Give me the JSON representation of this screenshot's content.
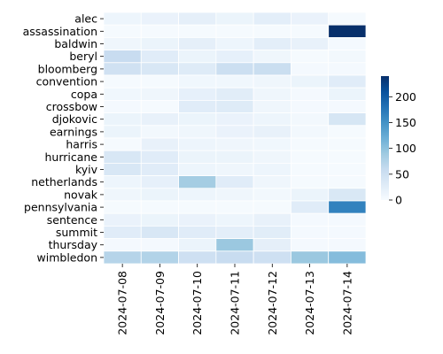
{
  "chart_data": {
    "type": "heatmap",
    "title": "",
    "xlabel": "",
    "ylabel": "",
    "rows": [
      "alec",
      "assassination",
      "baldwin",
      "beryl",
      "bloomberg",
      "convention",
      "copa",
      "crossbow",
      "djokovic",
      "earnings",
      "harris",
      "hurricane",
      "kyiv",
      "netherlands",
      "novak",
      "pennsylvania",
      "sentence",
      "summit",
      "thursday",
      "wimbledon"
    ],
    "columns": [
      "2024-07-08",
      "2024-07-09",
      "2024-07-10",
      "2024-07-11",
      "2024-07-12",
      "2024-07-13",
      "2024-07-14"
    ],
    "values": [
      [
        12,
        16,
        22,
        14,
        24,
        16,
        2
      ],
      [
        2,
        2,
        2,
        2,
        2,
        2,
        240
      ],
      [
        10,
        14,
        22,
        12,
        24,
        18,
        4
      ],
      [
        58,
        28,
        14,
        20,
        10,
        2,
        6
      ],
      [
        48,
        38,
        30,
        52,
        55,
        4,
        4
      ],
      [
        2,
        2,
        8,
        8,
        10,
        14,
        28
      ],
      [
        8,
        10,
        20,
        26,
        10,
        4,
        14
      ],
      [
        4,
        2,
        28,
        30,
        10,
        4,
        4
      ],
      [
        14,
        18,
        14,
        16,
        12,
        6,
        40
      ],
      [
        14,
        6,
        10,
        16,
        18,
        6,
        2
      ],
      [
        2,
        18,
        12,
        10,
        8,
        2,
        2
      ],
      [
        38,
        28,
        14,
        14,
        10,
        2,
        2
      ],
      [
        38,
        28,
        12,
        10,
        12,
        2,
        2
      ],
      [
        12,
        20,
        85,
        28,
        10,
        2,
        2
      ],
      [
        10,
        14,
        12,
        10,
        6,
        14,
        36
      ],
      [
        2,
        2,
        2,
        2,
        2,
        28,
        165
      ],
      [
        16,
        14,
        16,
        12,
        18,
        4,
        4
      ],
      [
        28,
        38,
        28,
        24,
        26,
        4,
        4
      ],
      [
        4,
        4,
        14,
        92,
        22,
        4,
        4
      ],
      [
        72,
        75,
        50,
        58,
        50,
        92,
        105
      ]
    ],
    "colorbar": {
      "min": 0,
      "max": 240,
      "ticks": [
        0,
        50,
        100,
        150,
        200
      ]
    },
    "colormap": [
      "#f7fbff",
      "#deebf7",
      "#c6dbef",
      "#9ecae1",
      "#6baed6",
      "#4292c6",
      "#2171b5",
      "#08519c",
      "#08306b"
    ]
  }
}
